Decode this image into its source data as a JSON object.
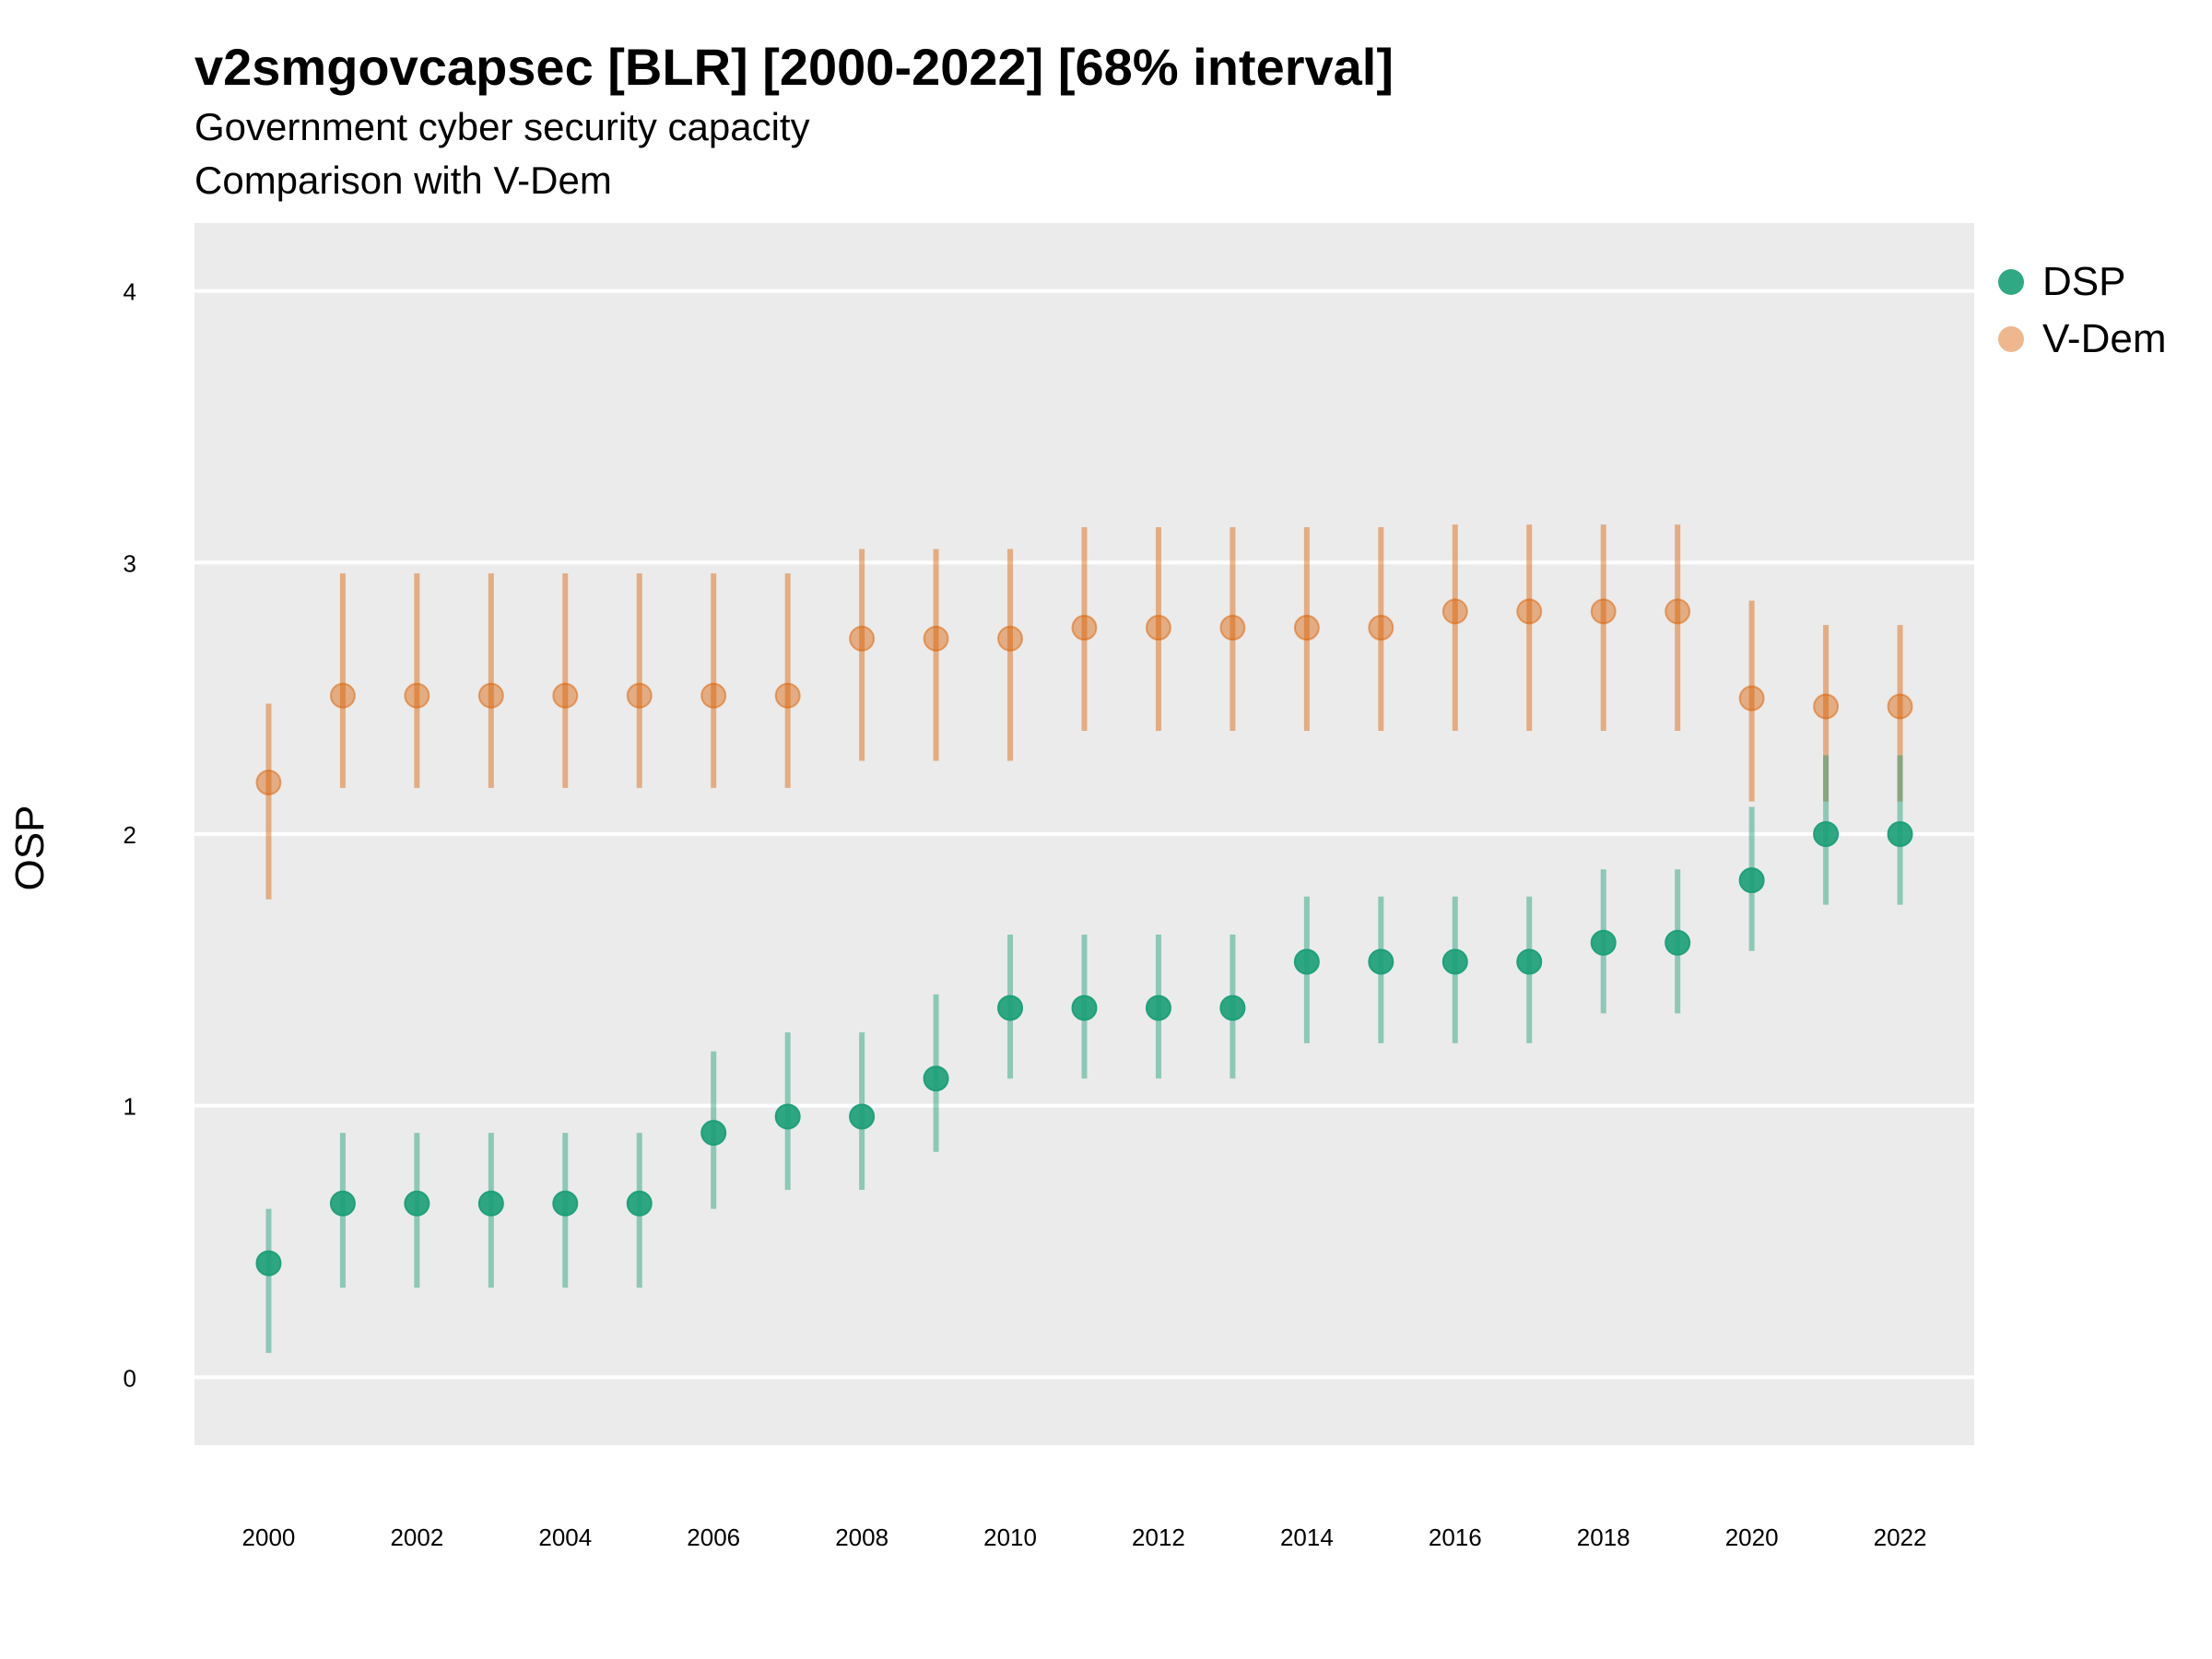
{
  "chart_data": {
    "type": "scatter",
    "title": "v2smgovcapsec [BLR] [2000-2022] [68% interval]",
    "subtitle_lines": [
      "Government cyber security capacity",
      "Comparison with V-Dem"
    ],
    "xlabel": "",
    "ylabel": "OSP",
    "x": [
      2000,
      2001,
      2002,
      2003,
      2004,
      2005,
      2006,
      2007,
      2008,
      2009,
      2010,
      2011,
      2012,
      2013,
      2014,
      2015,
      2016,
      2017,
      2018,
      2019,
      2020,
      2021,
      2022
    ],
    "x_ticks": [
      "2000",
      "2002",
      "2004",
      "2006",
      "2008",
      "2010",
      "2012",
      "2014",
      "2016",
      "2018",
      "2020",
      "2022"
    ],
    "y_ticks": [
      "0",
      "1",
      "2",
      "3",
      "4"
    ],
    "xlim": [
      1999.0,
      2023.0
    ],
    "ylim": [
      -0.25,
      4.25
    ],
    "grid": true,
    "legend_position": "right",
    "series": [
      {
        "name": "DSP",
        "color": "#1b9e77",
        "values": [
          0.42,
          0.64,
          0.64,
          0.64,
          0.64,
          0.64,
          0.9,
          0.96,
          0.96,
          1.1,
          1.36,
          1.36,
          1.36,
          1.36,
          1.53,
          1.53,
          1.53,
          1.53,
          1.6,
          1.6,
          1.83,
          2.0,
          2.0
        ],
        "lower": [
          0.09,
          0.33,
          0.33,
          0.33,
          0.33,
          0.33,
          0.62,
          0.69,
          0.69,
          0.83,
          1.1,
          1.1,
          1.1,
          1.1,
          1.23,
          1.23,
          1.23,
          1.23,
          1.34,
          1.34,
          1.57,
          1.74,
          1.74
        ],
        "upper": [
          0.62,
          0.9,
          0.9,
          0.9,
          0.9,
          0.9,
          1.2,
          1.27,
          1.27,
          1.41,
          1.63,
          1.63,
          1.63,
          1.63,
          1.77,
          1.77,
          1.77,
          1.77,
          1.87,
          1.87,
          2.1,
          2.29,
          2.29
        ]
      },
      {
        "name": "V-Dem",
        "color": "#d95f02",
        "values": [
          2.19,
          2.51,
          2.51,
          2.51,
          2.51,
          2.51,
          2.51,
          2.51,
          2.72,
          2.72,
          2.72,
          2.76,
          2.76,
          2.76,
          2.76,
          2.76,
          2.82,
          2.82,
          2.82,
          2.82,
          2.5,
          2.47,
          2.47
        ],
        "lower": [
          1.76,
          2.17,
          2.17,
          2.17,
          2.17,
          2.17,
          2.17,
          2.17,
          2.27,
          2.27,
          2.27,
          2.38,
          2.38,
          2.38,
          2.38,
          2.38,
          2.38,
          2.38,
          2.38,
          2.38,
          2.12,
          2.12,
          2.12
        ],
        "upper": [
          2.48,
          2.96,
          2.96,
          2.96,
          2.96,
          2.96,
          2.96,
          2.96,
          3.05,
          3.05,
          3.05,
          3.13,
          3.13,
          3.13,
          3.13,
          3.13,
          3.14,
          3.14,
          3.14,
          3.14,
          2.86,
          2.77,
          2.77
        ]
      }
    ]
  }
}
